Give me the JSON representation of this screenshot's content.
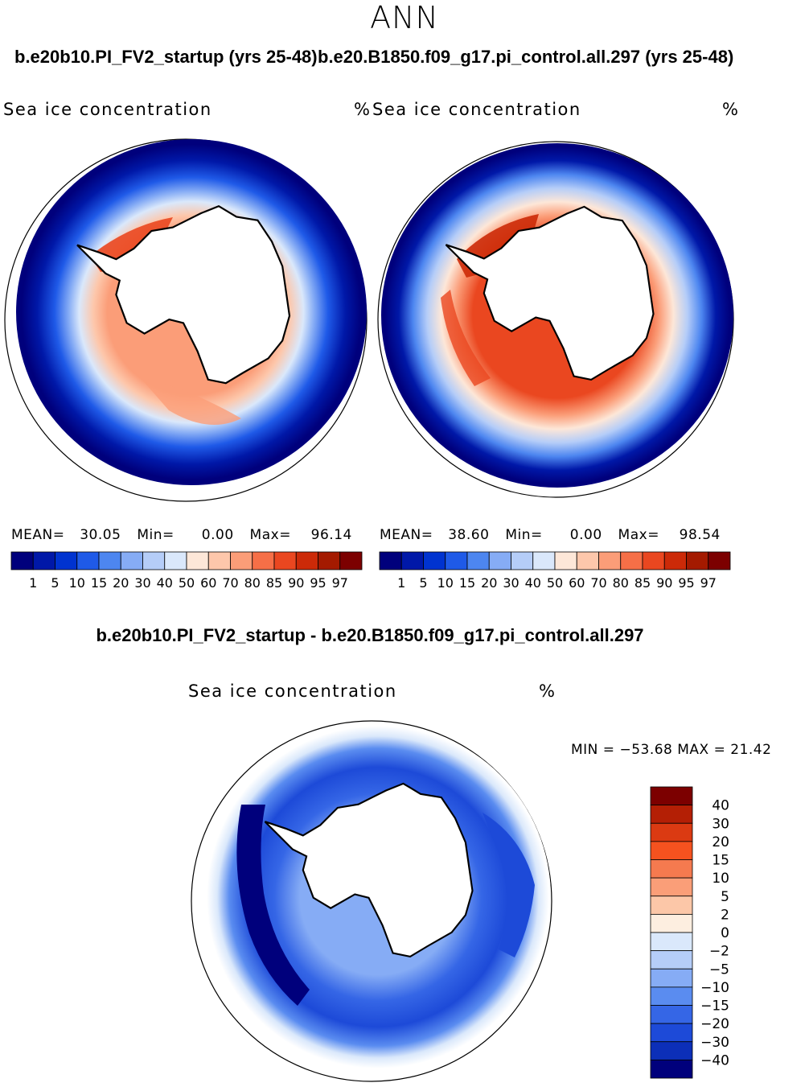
{
  "title": "ANN",
  "runs": {
    "left": "b.e20b10.PI_FV2_startup (yrs 25-48)",
    "right": "b.e20.B1850.f09_g17.pi_control.all.297 (yrs 25-48)"
  },
  "panels": [
    {
      "variable": "Sea ice concentration",
      "units": "%",
      "mean_label": "MEAN=",
      "mean": "30.05",
      "min_label": "Min=",
      "min": "0.00",
      "max_label": "Max=",
      "max": "96.14"
    },
    {
      "variable": "Sea ice concentration",
      "units": "%",
      "mean_label": "MEAN=",
      "mean": "38.60",
      "min_label": "Min=",
      "min": "0.00",
      "max_label": "Max=",
      "max": "98.54"
    }
  ],
  "colorbar": {
    "colors": [
      "#00007c",
      "#0018a8",
      "#0033d0",
      "#1f5ae8",
      "#4d86f0",
      "#86acf5",
      "#b5cdf8",
      "#dae8fb",
      "#fde7d8",
      "#fdc7ab",
      "#fb9d78",
      "#f66f47",
      "#ea4720",
      "#cc2a08",
      "#a41a00",
      "#7c0000"
    ],
    "labels": [
      "1",
      "5",
      "10",
      "15",
      "20",
      "30",
      "40",
      "50",
      "60",
      "70",
      "80",
      "85",
      "90",
      "95",
      "97"
    ]
  },
  "difference": {
    "title": "b.e20b10.PI_FV2_startup - b.e20.B1850.f09_g17.pi_control.all.297",
    "variable": "Sea ice concentration",
    "units": "%",
    "minmax": "MIN = −53.68 MAX =   21.42",
    "colorbar": {
      "colors": [
        "#7c0000",
        "#b41f05",
        "#db3a12",
        "#f5521f",
        "#f57a4f",
        "#fa9e78",
        "#fcc7a8",
        "#fdeee0",
        "#dae8fb",
        "#b5cdf8",
        "#86acf5",
        "#5a8cf0",
        "#3566e6",
        "#1d4ad8",
        "#0c2fb8",
        "#00007c"
      ],
      "labels": [
        "40",
        "30",
        "20",
        "15",
        "10",
        "5",
        "2",
        "0",
        "−2",
        "−5",
        "−10",
        "−15",
        "−20",
        "−30",
        "−40"
      ]
    }
  },
  "colors": {
    "land": "#ffffff",
    "outline": "#000000"
  }
}
